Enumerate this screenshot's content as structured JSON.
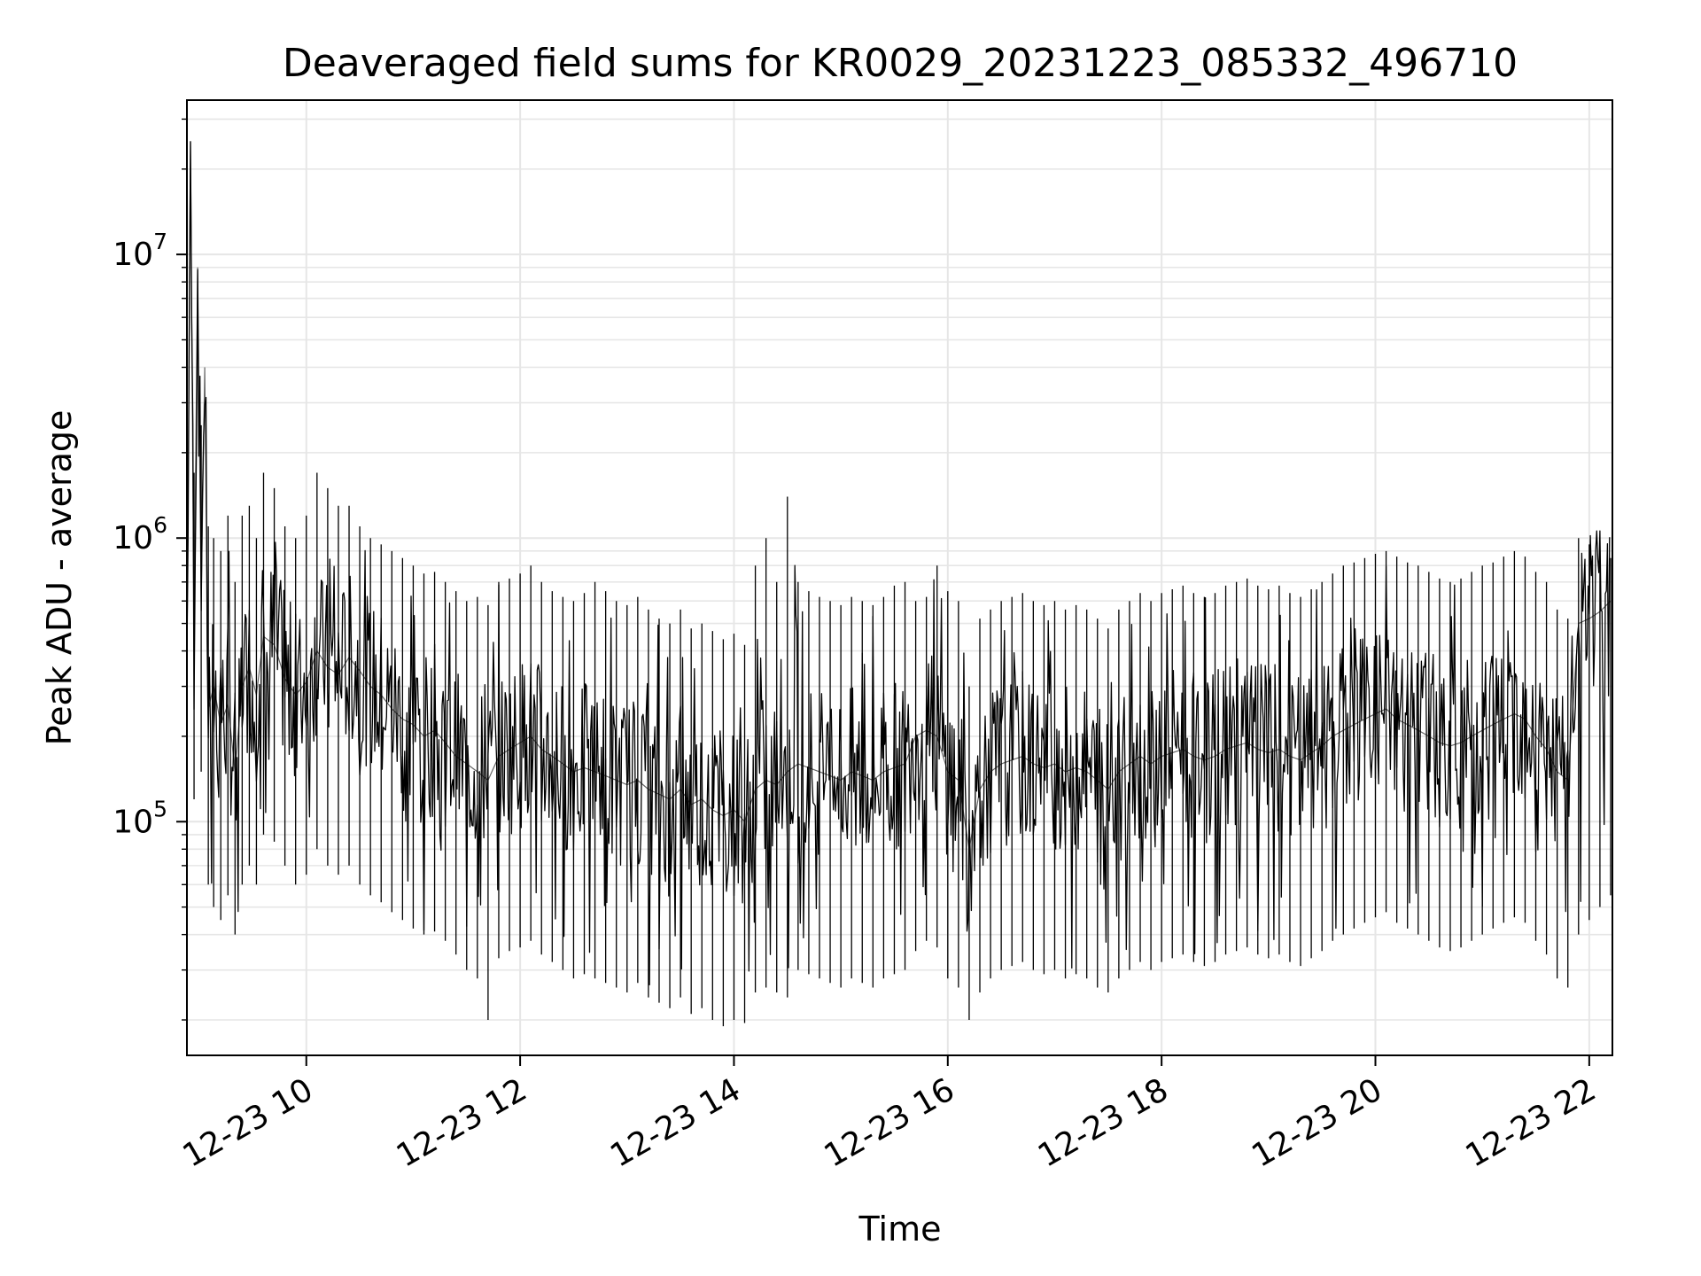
{
  "chart_data": {
    "type": "line",
    "title": "Deaveraged field sums for KR0029_20231223_085332_496710",
    "xlabel": "Time",
    "ylabel": "Peak ADU - average",
    "y_scale": "log",
    "ylim": [
      15000,
      35000000
    ],
    "xlim": [
      "2023-12-23 08:53",
      "2023-12-23 22:13"
    ],
    "grid": true,
    "line_color": "#000000",
    "x_ticks": [
      {
        "t": "2023-12-23 10:00",
        "label": "12-23 10"
      },
      {
        "t": "2023-12-23 12:00",
        "label": "12-23 12"
      },
      {
        "t": "2023-12-23 14:00",
        "label": "12-23 14"
      },
      {
        "t": "2023-12-23 16:00",
        "label": "12-23 16"
      },
      {
        "t": "2023-12-23 18:00",
        "label": "12-23 18"
      },
      {
        "t": "2023-12-23 20:00",
        "label": "12-23 20"
      },
      {
        "t": "2023-12-23 22:00",
        "label": "12-23 22"
      }
    ],
    "y_ticks": [
      {
        "value": 100000,
        "base": "10",
        "exp": "5"
      },
      {
        "value": 1000000,
        "base": "10",
        "exp": "6"
      },
      {
        "value": 10000000,
        "base": "10",
        "exp": "7"
      }
    ],
    "series": [
      {
        "x": [
          "2023-12-23 08:53",
          "2023-12-23 08:55",
          "2023-12-23 08:57",
          "2023-12-23 08:59",
          "2023-12-23 09:01",
          "2023-12-23 09:03",
          "2023-12-23 09:05",
          "2023-12-23 09:08",
          "2023-12-23 09:12",
          "2023-12-23 09:16",
          "2023-12-23 09:20",
          "2023-12-23 09:24",
          "2023-12-23 09:28",
          "2023-12-23 09:32",
          "2023-12-23 09:36",
          "2023-12-23 09:42",
          "2023-12-23 09:48",
          "2023-12-23 09:54",
          "2023-12-23 10:00",
          "2023-12-23 10:06",
          "2023-12-23 10:12",
          "2023-12-23 10:18",
          "2023-12-23 10:24",
          "2023-12-23 10:30",
          "2023-12-23 10:36",
          "2023-12-23 10:42",
          "2023-12-23 10:48",
          "2023-12-23 10:54",
          "2023-12-23 11:00",
          "2023-12-23 11:06",
          "2023-12-23 11:12",
          "2023-12-23 11:18",
          "2023-12-23 11:24",
          "2023-12-23 11:30",
          "2023-12-23 11:36",
          "2023-12-23 11:42",
          "2023-12-23 11:48",
          "2023-12-23 11:54",
          "2023-12-23 12:00",
          "2023-12-23 12:06",
          "2023-12-23 12:12",
          "2023-12-23 12:18",
          "2023-12-23 12:24",
          "2023-12-23 12:30",
          "2023-12-23 12:36",
          "2023-12-23 12:42",
          "2023-12-23 12:48",
          "2023-12-23 12:54",
          "2023-12-23 13:00",
          "2023-12-23 13:06",
          "2023-12-23 13:12",
          "2023-12-23 13:18",
          "2023-12-23 13:24",
          "2023-12-23 13:30",
          "2023-12-23 13:36",
          "2023-12-23 13:42",
          "2023-12-23 13:48",
          "2023-12-23 13:54",
          "2023-12-23 14:00",
          "2023-12-23 14:06",
          "2023-12-23 14:12",
          "2023-12-23 14:18",
          "2023-12-23 14:24",
          "2023-12-23 14:30",
          "2023-12-23 14:36",
          "2023-12-23 14:42",
          "2023-12-23 14:48",
          "2023-12-23 14:54",
          "2023-12-23 15:00",
          "2023-12-23 15:06",
          "2023-12-23 15:12",
          "2023-12-23 15:18",
          "2023-12-23 15:24",
          "2023-12-23 15:30",
          "2023-12-23 15:36",
          "2023-12-23 15:42",
          "2023-12-23 15:48",
          "2023-12-23 15:54",
          "2023-12-23 16:00",
          "2023-12-23 16:06",
          "2023-12-23 16:12",
          "2023-12-23 16:18",
          "2023-12-23 16:24",
          "2023-12-23 16:30",
          "2023-12-23 16:36",
          "2023-12-23 16:42",
          "2023-12-23 16:48",
          "2023-12-23 16:54",
          "2023-12-23 17:00",
          "2023-12-23 17:06",
          "2023-12-23 17:12",
          "2023-12-23 17:18",
          "2023-12-23 17:24",
          "2023-12-23 17:30",
          "2023-12-23 17:36",
          "2023-12-23 17:42",
          "2023-12-23 17:48",
          "2023-12-23 17:54",
          "2023-12-23 18:00",
          "2023-12-23 18:06",
          "2023-12-23 18:12",
          "2023-12-23 18:18",
          "2023-12-23 18:24",
          "2023-12-23 18:30",
          "2023-12-23 18:36",
          "2023-12-23 18:42",
          "2023-12-23 18:48",
          "2023-12-23 18:54",
          "2023-12-23 19:00",
          "2023-12-23 19:06",
          "2023-12-23 19:12",
          "2023-12-23 19:18",
          "2023-12-23 19:24",
          "2023-12-23 19:30",
          "2023-12-23 19:36",
          "2023-12-23 19:42",
          "2023-12-23 19:48",
          "2023-12-23 19:54",
          "2023-12-23 20:00",
          "2023-12-23 20:06",
          "2023-12-23 20:12",
          "2023-12-23 20:18",
          "2023-12-23 20:24",
          "2023-12-23 20:30",
          "2023-12-23 20:36",
          "2023-12-23 20:42",
          "2023-12-23 20:48",
          "2023-12-23 20:54",
          "2023-12-23 21:00",
          "2023-12-23 21:06",
          "2023-12-23 21:12",
          "2023-12-23 21:18",
          "2023-12-23 21:24",
          "2023-12-23 21:30",
          "2023-12-23 21:36",
          "2023-12-23 21:42",
          "2023-12-23 21:48",
          "2023-12-23 21:54",
          "2023-12-23 22:00",
          "2023-12-23 22:06",
          "2023-12-23 22:12"
        ],
        "y": [
          350000,
          25000000,
          450000,
          9000000,
          600000,
          4000000,
          250000,
          300000,
          220000,
          260000,
          150000,
          300000,
          350000,
          280000,
          450000,
          420000,
          320000,
          280000,
          310000,
          400000,
          350000,
          330000,
          380000,
          340000,
          300000,
          280000,
          250000,
          230000,
          220000,
          200000,
          210000,
          190000,
          170000,
          160000,
          150000,
          140000,
          170000,
          180000,
          190000,
          200000,
          180000,
          170000,
          160000,
          150000,
          155000,
          150000,
          145000,
          140000,
          135000,
          140000,
          130000,
          125000,
          120000,
          130000,
          115000,
          120000,
          110000,
          105000,
          110000,
          100000,
          130000,
          140000,
          135000,
          150000,
          160000,
          155000,
          150000,
          145000,
          140000,
          150000,
          145000,
          140000,
          150000,
          155000,
          160000,
          200000,
          210000,
          200000,
          150000,
          140000,
          80000,
          130000,
          150000,
          160000,
          165000,
          170000,
          160000,
          155000,
          160000,
          150000,
          155000,
          150000,
          140000,
          130000,
          150000,
          160000,
          170000,
          160000,
          170000,
          175000,
          180000,
          170000,
          165000,
          170000,
          180000,
          185000,
          190000,
          180000,
          175000,
          180000,
          170000,
          165000,
          175000,
          185000,
          200000,
          210000,
          220000,
          230000,
          240000,
          250000,
          230000,
          220000,
          210000,
          200000,
          190000,
          185000,
          190000,
          200000,
          210000,
          220000,
          230000,
          240000,
          230000,
          200000,
          180000,
          150000,
          140000,
          500000,
          520000,
          550000,
          600000
        ],
        "envelope_hi": [
          1500000,
          25000000,
          1700000,
          9000000,
          2500000,
          4000000,
          1100000,
          1000000,
          900000,
          1200000,
          700000,
          1200000,
          1300000,
          1000000,
          1700000,
          1500000,
          1100000,
          1000000,
          1200000,
          1700000,
          1500000,
          1300000,
          1300000,
          1100000,
          1000000,
          950000,
          900000,
          850000,
          800000,
          750000,
          760000,
          700000,
          650000,
          600000,
          620000,
          580000,
          700000,
          720000,
          750000,
          800000,
          700000,
          650000,
          620000,
          600000,
          640000,
          700000,
          650000,
          600000,
          580000,
          620000,
          560000,
          520000,
          500000,
          560000,
          480000,
          500000,
          470000,
          440000,
          460000,
          420000,
          800000,
          1000000,
          700000,
          1400000,
          700000,
          650000,
          620000,
          600000,
          580000,
          620000,
          600000,
          580000,
          620000,
          680000,
          700000,
          600000,
          620000,
          800000,
          650000,
          600000,
          300000,
          520000,
          560000,
          600000,
          620000,
          640000,
          600000,
          580000,
          600000,
          560000,
          580000,
          560000,
          520000,
          480000,
          560000,
          600000,
          640000,
          600000,
          640000,
          660000,
          680000,
          640000,
          620000,
          640000,
          680000,
          700000,
          720000,
          680000,
          660000,
          680000,
          640000,
          620000,
          660000,
          700000,
          750000,
          800000,
          820000,
          850000,
          880000,
          900000,
          860000,
          820000,
          800000,
          760000,
          720000,
          700000,
          720000,
          760000,
          800000,
          820000,
          860000,
          900000,
          860000,
          760000,
          700000,
          560000,
          520000,
          1000000,
          950000,
          900000,
          850000
        ],
        "envelope_lo": [
          90000,
          25000000,
          120000,
          9000000,
          150000,
          4000000,
          60000,
          50000,
          45000,
          55000,
          40000,
          60000,
          70000,
          60000,
          90000,
          85000,
          70000,
          60000,
          65000,
          80000,
          70000,
          65000,
          70000,
          60000,
          55000,
          52000,
          48000,
          45000,
          42000,
          40000,
          41000,
          38000,
          34000,
          30000,
          28000,
          20000,
          33000,
          35000,
          36000,
          38000,
          34000,
          32000,
          30000,
          28000,
          29000,
          28000,
          27000,
          26000,
          25000,
          27000,
          24000,
          23000,
          22000,
          24000,
          21000,
          22000,
          20000,
          19000,
          20000,
          19500,
          25000,
          26000,
          25000,
          24000,
          30000,
          29000,
          28000,
          27000,
          26000,
          28000,
          27000,
          26000,
          28000,
          29000,
          30000,
          35000,
          38000,
          36000,
          28000,
          26000,
          20000,
          25000,
          28000,
          30000,
          31000,
          32000,
          30000,
          29000,
          30000,
          28000,
          29000,
          28000,
          26000,
          25000,
          28000,
          30000,
          32000,
          30000,
          32000,
          33000,
          34000,
          32000,
          31000,
          32000,
          34000,
          35000,
          36000,
          34000,
          33000,
          34000,
          32000,
          31000,
          33000,
          35000,
          38000,
          40000,
          42000,
          44000,
          46000,
          48000,
          44000,
          42000,
          40000,
          38000,
          36000,
          35000,
          36000,
          38000,
          40000,
          42000,
          44000,
          46000,
          44000,
          38000,
          34000,
          28000,
          26000,
          40000,
          45000,
          50000,
          55000
        ]
      }
    ]
  }
}
